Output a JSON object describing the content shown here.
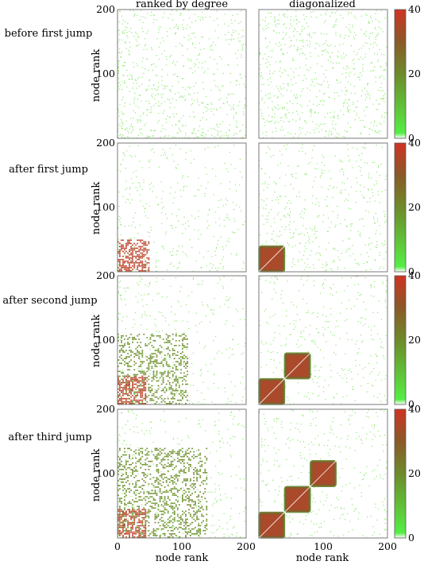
{
  "chart_data": {
    "type": "heatmap",
    "column_titles": [
      "ranked by degree",
      "diagonalized"
    ],
    "row_labels": [
      "before first jump",
      "after first jump",
      "after second jump",
      "after third jump"
    ],
    "xlabel": "node rank",
    "ylabel": "node rank",
    "xlim": [
      0,
      200
    ],
    "ylim": [
      0,
      200
    ],
    "x_ticks": [
      0,
      100,
      200
    ],
    "y_ticks": [
      100,
      200
    ],
    "colorbar": {
      "range": [
        0,
        40
      ],
      "ticks": [
        0,
        20,
        40
      ],
      "color_low": "#55dd33",
      "color_mid": "#7a6a2a",
      "color_high": "#cc3322"
    },
    "rows": [
      {
        "label": "before first jump",
        "ranked": {
          "dense_blocks": [],
          "sparse_density": 0.04
        },
        "diagonalized": {
          "communities": [],
          "sparse_density": 0.04
        }
      },
      {
        "label": "after first jump",
        "ranked": {
          "dense_blocks": [
            [
              0,
              50,
              0,
              50,
              40
            ]
          ],
          "sparse_density": 0.02
        },
        "diagonalized": {
          "communities": [
            [
              0,
              40
            ]
          ],
          "sparse_density": 0.025
        }
      },
      {
        "label": "after second jump",
        "ranked": {
          "dense_blocks": [
            [
              0,
              45,
              0,
              45,
              40
            ],
            [
              0,
              110,
              0,
              110,
              22
            ]
          ],
          "sparse_density": 0.02
        },
        "diagonalized": {
          "communities": [
            [
              0,
              40
            ],
            [
              40,
              80
            ]
          ],
          "sparse_density": 0.02
        }
      },
      {
        "label": "after third jump",
        "ranked": {
          "dense_blocks": [
            [
              0,
              45,
              0,
              45,
              40
            ],
            [
              0,
              140,
              0,
              140,
              22
            ]
          ],
          "sparse_density": 0.02
        },
        "diagonalized": {
          "communities": [
            [
              0,
              40
            ],
            [
              40,
              80
            ],
            [
              80,
              120
            ]
          ],
          "sparse_density": 0.02
        }
      }
    ]
  }
}
